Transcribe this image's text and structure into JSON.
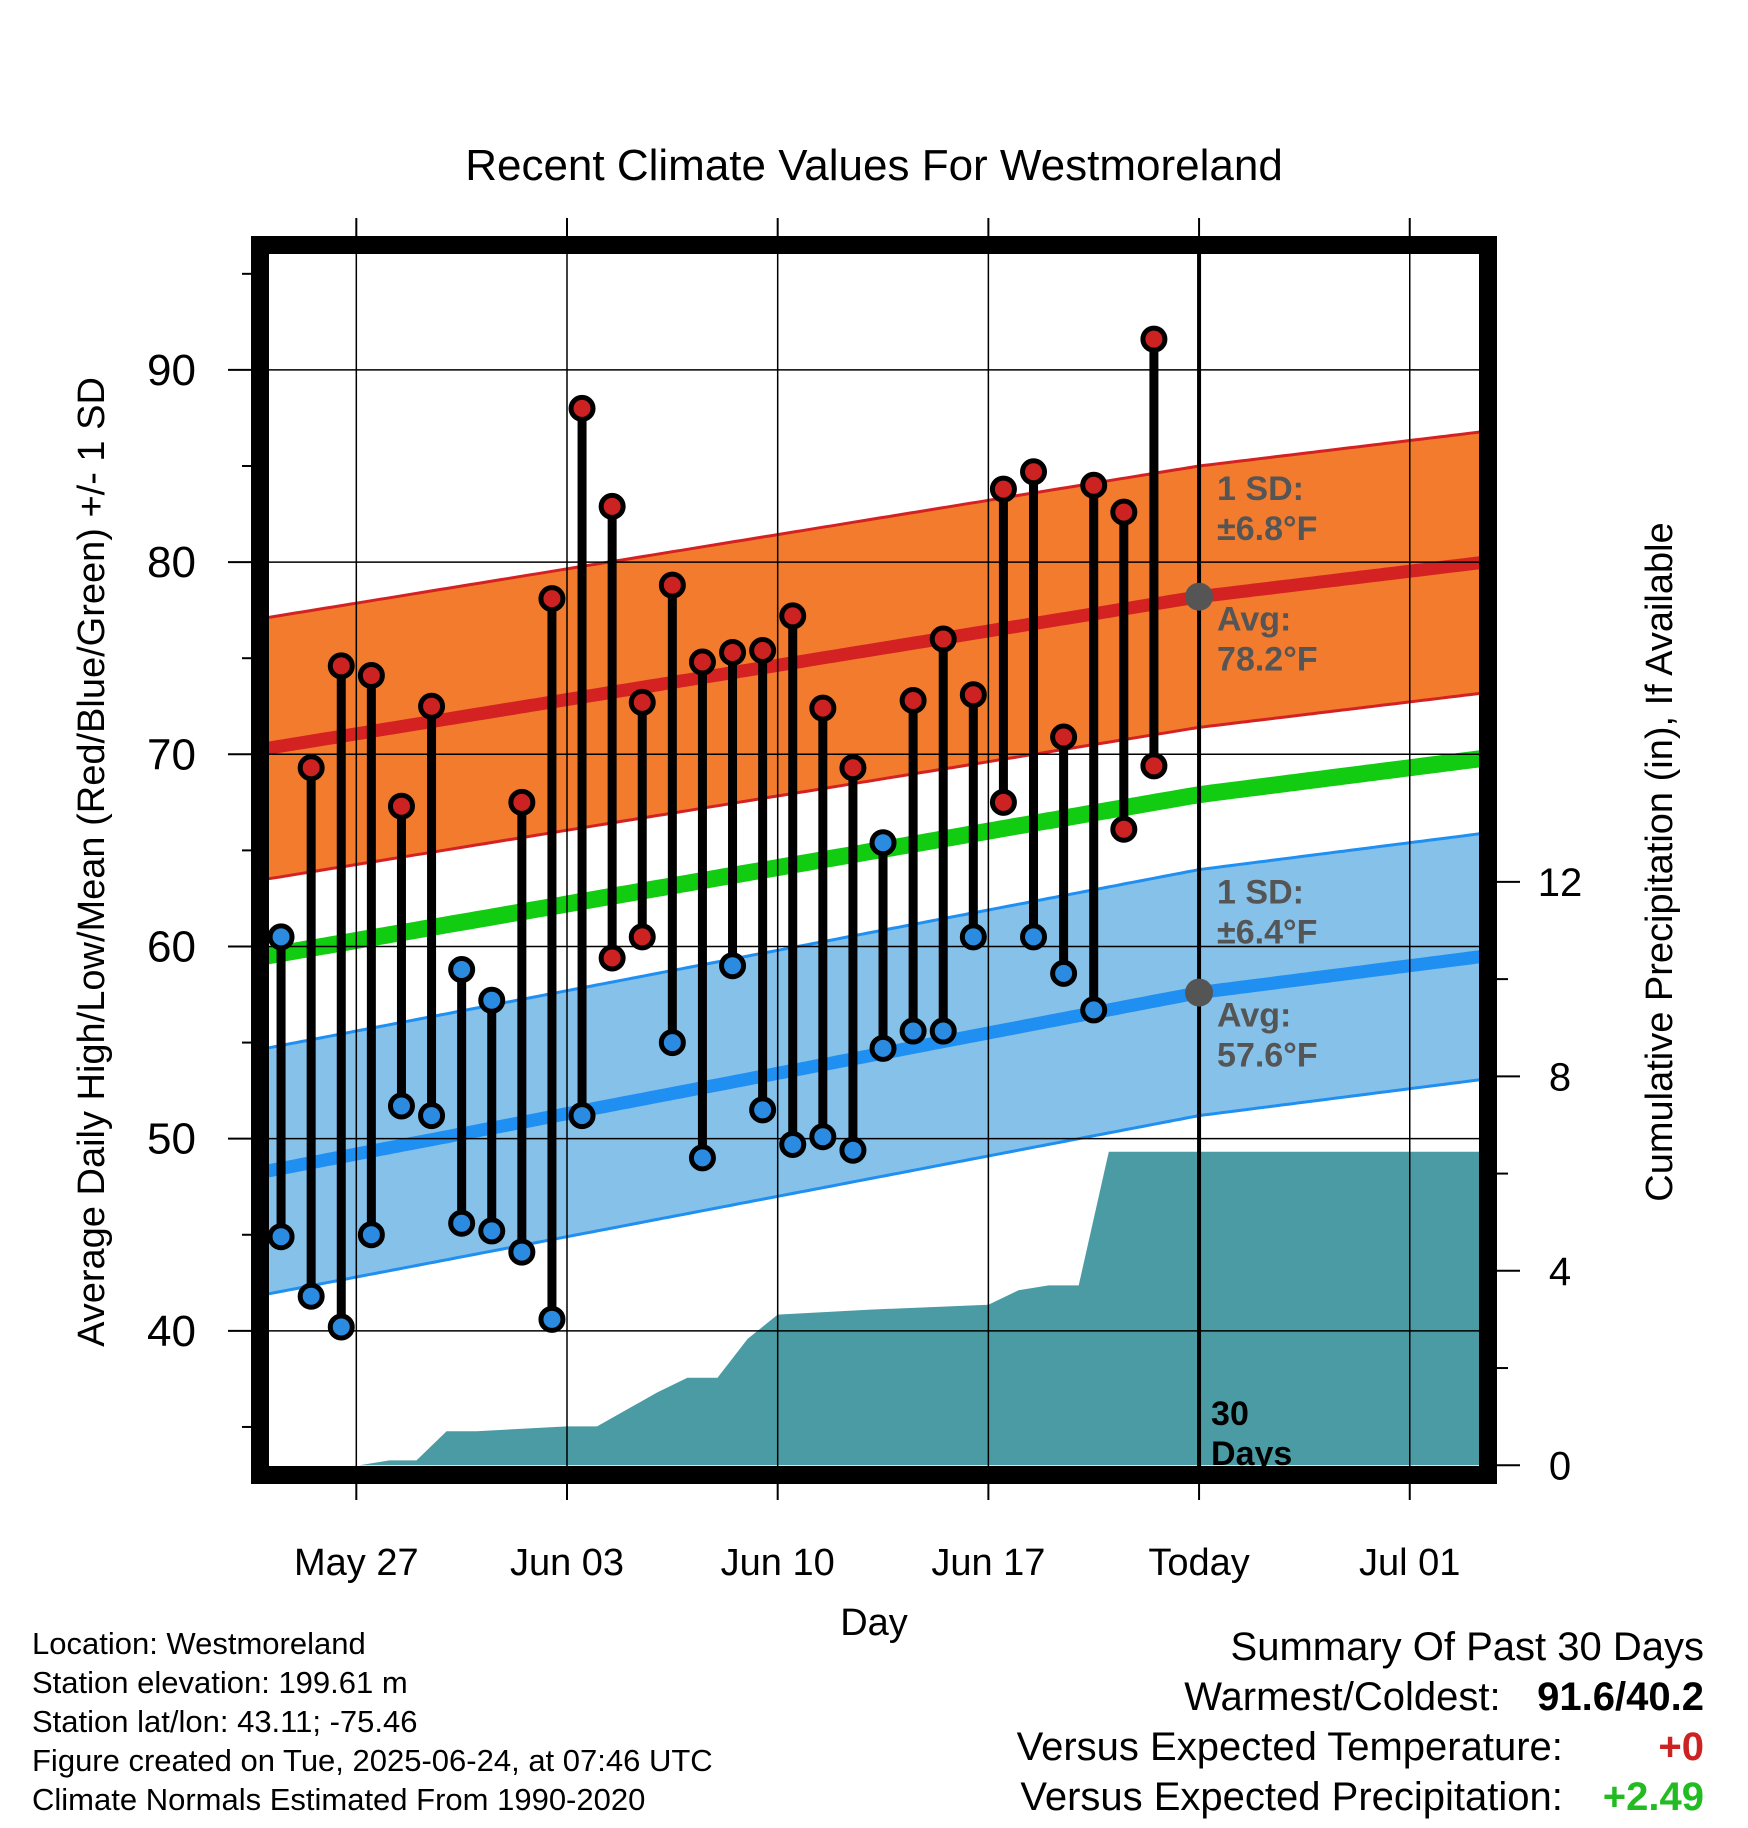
{
  "chart_data": {
    "type": "line",
    "title": "Recent Climate Values For Westmoreland",
    "xlabel": "Day",
    "ylabel": "Average Daily High/Low/Mean (Red/Blue/Green) +/- 1 SD",
    "y2label": "Cumulative Precipitation (in), If Available",
    "ylim": [
      32.5,
      96.5
    ],
    "y2lim": [
      -0.2,
      25.1
    ],
    "yticks": [
      "40",
      "50",
      "60",
      "70",
      "80",
      "90"
    ],
    "y2ticks": [
      "0",
      "4",
      "8",
      "12"
    ],
    "x_ticks": [
      {
        "day": 4,
        "label": "May 27"
      },
      {
        "day": 11,
        "label": "Jun 03"
      },
      {
        "day": 18,
        "label": "Jun 10"
      },
      {
        "day": 25,
        "label": "Jun 17"
      },
      {
        "day": 32,
        "label": "Today"
      },
      {
        "day": 39,
        "label": "Jul 01"
      }
    ],
    "xlim": [
      0.8,
      41.6
    ],
    "grid": true,
    "today_marker": {
      "day": 32,
      "label_line1": "30",
      "label_line2": "Days"
    },
    "normals": {
      "days": [
        1,
        32,
        41.5
      ],
      "avg_high": [
        70.3,
        78.2,
        80.0
      ],
      "avg_low": [
        48.3,
        57.6,
        59.5
      ],
      "avg_mean": [
        59.5,
        67.9,
        69.8
      ],
      "high_sd": 6.8,
      "low_sd": 6.4,
      "high_avg_label": "Avg:",
      "high_avg_value": "78.2°F",
      "high_sd_label": "1 SD:",
      "high_sd_value": "±6.8°F",
      "low_avg_label": "Avg:",
      "low_avg_value": "57.6°F",
      "low_sd_label": "1 SD:",
      "low_sd_value": "±6.4°F"
    },
    "daily": [
      {
        "day": 1.5,
        "high": 60.5,
        "low": 44.9
      },
      {
        "day": 2.5,
        "high": 69.3,
        "low": 41.8
      },
      {
        "day": 3.5,
        "high": 74.6,
        "low": 40.2
      },
      {
        "day": 4.5,
        "high": 74.1,
        "low": 45.0
      },
      {
        "day": 5.5,
        "high": 67.3,
        "low": 51.7
      },
      {
        "day": 6.5,
        "high": 72.5,
        "low": 51.2
      },
      {
        "day": 7.5,
        "high": 58.8,
        "low": 45.6
      },
      {
        "day": 8.5,
        "high": 57.2,
        "low": 45.2
      },
      {
        "day": 9.5,
        "high": 67.5,
        "low": 44.1
      },
      {
        "day": 10.5,
        "high": 78.1,
        "low": 40.6
      },
      {
        "day": 11.5,
        "high": 88.0,
        "low": 51.2
      },
      {
        "day": 12.5,
        "high": 82.9,
        "low": 59.4
      },
      {
        "day": 13.5,
        "high": 72.7,
        "low": 60.5
      },
      {
        "day": 14.5,
        "high": 78.8,
        "low": 55.0
      },
      {
        "day": 15.5,
        "high": 74.8,
        "low": 49.0
      },
      {
        "day": 16.5,
        "high": 75.3,
        "low": 59.0
      },
      {
        "day": 17.5,
        "high": 75.4,
        "low": 51.5
      },
      {
        "day": 18.5,
        "high": 77.2,
        "low": 49.7
      },
      {
        "day": 19.5,
        "high": 72.4,
        "low": 50.1
      },
      {
        "day": 20.5,
        "high": 69.3,
        "low": 49.4
      },
      {
        "day": 21.5,
        "high": 65.4,
        "low": 54.7
      },
      {
        "day": 22.5,
        "high": 72.8,
        "low": 55.6
      },
      {
        "day": 23.5,
        "high": 76.0,
        "low": 55.6
      },
      {
        "day": 24.5,
        "high": 73.1,
        "low": 60.5
      },
      {
        "day": 25.5,
        "high": 83.8,
        "low": 67.5
      },
      {
        "day": 26.5,
        "high": 84.7,
        "low": 60.5
      },
      {
        "day": 27.5,
        "high": 70.9,
        "low": 58.6
      },
      {
        "day": 28.5,
        "high": 84.0,
        "low": 56.7
      },
      {
        "day": 29.5,
        "high": 82.6,
        "low": 66.1
      },
      {
        "day": 30.5,
        "high": 91.6,
        "low": 69.4
      }
    ],
    "precip_cumulative": {
      "day": [
        0.8,
        4.1,
        5.1,
        6.0,
        7.0,
        8.0,
        11.0,
        12.0,
        14.0,
        15.0,
        16.0,
        17.0,
        18.0,
        21.0,
        25.0,
        26.0,
        27.0,
        28.0,
        29.0,
        41.6
      ],
      "value": [
        0,
        0,
        0.1,
        0.1,
        0.7,
        0.7,
        0.8,
        0.8,
        1.5,
        1.8,
        1.8,
        2.6,
        3.1,
        3.2,
        3.3,
        3.6,
        3.7,
        3.7,
        6.45,
        6.45
      ]
    }
  },
  "footer": {
    "location": "Location: Westmoreland",
    "elevation": "Station elevation: 199.61 m",
    "latlon": "Station lat/lon: 43.11; -75.46",
    "created": "Figure created on Tue, 2025-06-24, at 07:46 UTC",
    "normals": "Climate Normals Estimated From 1990-2020"
  },
  "summary": {
    "title": "Summary Of Past 30 Days",
    "warmest_coldest_label": "Warmest/Coldest:",
    "warmest_coldest_value": "91.6/40.2",
    "temp_label": "Versus Expected Temperature:",
    "temp_value": "+0",
    "precip_label": "Versus Expected Precipitation:",
    "precip_value": "+2.49"
  },
  "colors": {
    "high_band": "#f27b2e",
    "high_avg": "#d42222",
    "low_band": "#85c1e9",
    "low_avg": "#1f8ff2",
    "mean_line": "#11cc11",
    "precip_fill": "#4a9ba3",
    "high_dot": "#cc2222",
    "low_dot": "#2b8be0",
    "annotation_text": "#555555",
    "today_dot": "#555555",
    "summary_temp_value": "#cc2222",
    "summary_precip_value": "#22bb22"
  }
}
